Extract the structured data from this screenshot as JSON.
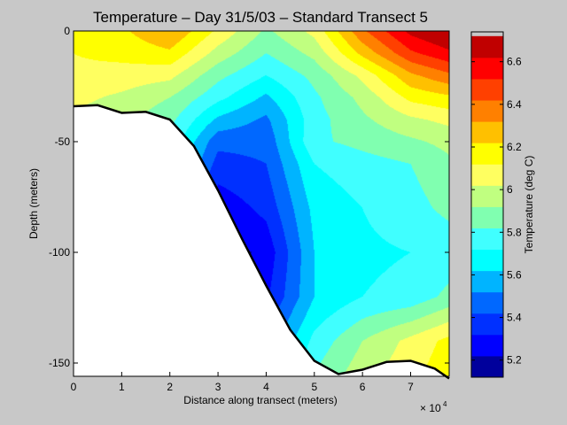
{
  "chart_data": {
    "type": "heatmap",
    "subtype": "filled-contour",
    "title": "Temperature – Day 31/5/03 – Standard Transect 5",
    "xlabel": "Distance along transect (meters)",
    "x_multiplier_label": "× 10",
    "x_multiplier_exp": "4",
    "ylabel": "Depth (meters)",
    "colorbar_label": "Temperature (deg C)",
    "xlim": [
      0,
      7.8
    ],
    "ylim": [
      -156,
      0
    ],
    "clim": [
      5.12,
      6.74
    ],
    "x_ticks": [
      "0",
      "1",
      "2",
      "3",
      "4",
      "5",
      "6",
      "7"
    ],
    "y_ticks": [
      "0",
      "-50",
      "-100",
      "-150"
    ],
    "colorbar_ticks": [
      "5.2",
      "5.4",
      "5.6",
      "5.8",
      "6",
      "6.2",
      "6.4",
      "6.6"
    ],
    "contour_levels_step": 0.1,
    "colors": [
      "#00009c",
      "#0000ff",
      "#0030ff",
      "#0068ff",
      "#00b4ff",
      "#00ffff",
      "#40ffff",
      "#80ffb0",
      "#c0ff80",
      "#ffff60",
      "#ffff00",
      "#ffc000",
      "#ff8000",
      "#ff4000",
      "#ff0000",
      "#c00000"
    ],
    "grid_x": [
      0,
      1,
      2,
      3,
      4,
      5,
      6,
      7,
      7.8
    ],
    "grid_depth": [
      0,
      -10,
      -20,
      -30,
      -40,
      -50,
      -60,
      -80,
      -100,
      -120,
      -140,
      -160
    ],
    "temperature": [
      [
        6.15,
        6.2,
        6.32,
        6.1,
        5.9,
        6.05,
        6.4,
        6.65,
        6.74
      ],
      [
        6.12,
        6.15,
        6.2,
        5.98,
        5.82,
        5.95,
        6.25,
        6.5,
        6.6
      ],
      [
        6.1,
        6.08,
        6.05,
        5.85,
        5.72,
        5.85,
        6.05,
        6.3,
        6.4
      ],
      [
        6.05,
        6.0,
        5.92,
        5.75,
        5.6,
        5.8,
        5.95,
        6.15,
        6.2
      ],
      [
        6.0,
        5.95,
        5.85,
        5.6,
        5.5,
        5.78,
        5.9,
        6.0,
        6.05
      ],
      [
        6.0,
        5.95,
        5.8,
        5.45,
        5.45,
        5.8,
        5.85,
        5.9,
        5.95
      ],
      [
        6.0,
        5.9,
        5.75,
        5.38,
        5.42,
        5.72,
        5.78,
        5.82,
        5.9
      ],
      [
        6.0,
        5.85,
        5.6,
        5.25,
        5.35,
        5.65,
        5.72,
        5.78,
        5.85
      ],
      [
        6.0,
        5.8,
        5.5,
        5.15,
        5.25,
        5.62,
        5.7,
        5.72,
        5.75
      ],
      [
        6.0,
        5.8,
        5.5,
        5.2,
        5.3,
        5.62,
        5.72,
        5.75,
        5.85
      ],
      [
        6.0,
        5.8,
        5.5,
        5.3,
        5.45,
        5.75,
        5.92,
        6.05,
        6.15
      ],
      [
        6.0,
        5.8,
        5.5,
        5.4,
        5.5,
        5.85,
        6.0,
        6.1,
        6.2
      ]
    ],
    "bathymetry": {
      "x": [
        0,
        0.5,
        1,
        1.5,
        2,
        2.5,
        3,
        3.5,
        4,
        4.5,
        5,
        5.5,
        6,
        6.5,
        7,
        7.5,
        7.8
      ],
      "depth": [
        -34,
        -33.5,
        -37,
        -36.5,
        -40,
        -52,
        -72,
        -94,
        -115,
        -135,
        -149,
        -155,
        -153,
        -149.5,
        -149,
        -152.5,
        -157
      ]
    }
  }
}
